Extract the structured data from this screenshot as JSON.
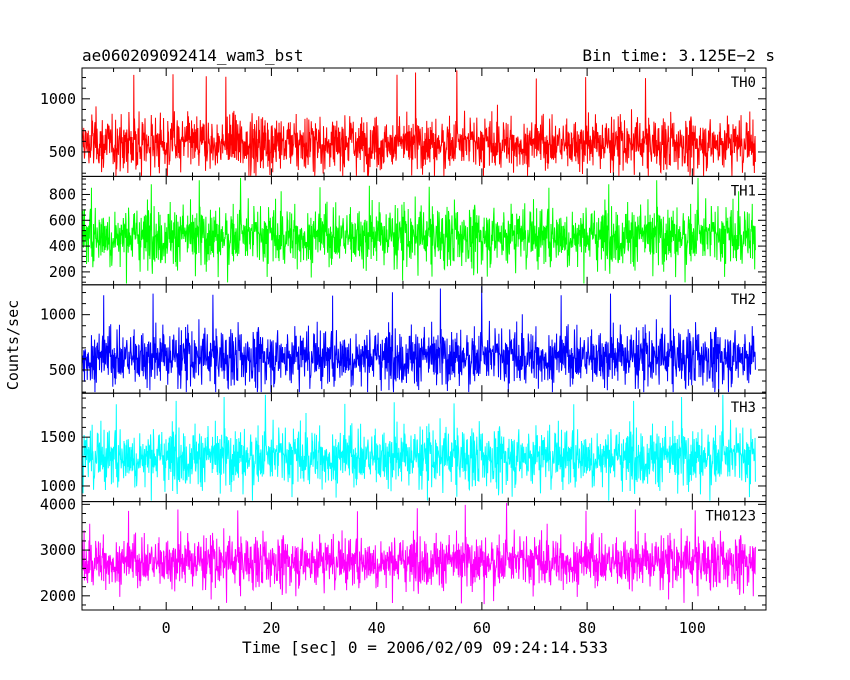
{
  "header": {
    "title": "ae060209092414_wam3_bst",
    "bin_time": "Bin time: 3.125E−2 s"
  },
  "axes": {
    "ylabel": "Counts/sec",
    "xlabel": "Time [sec] 0 = 2006/02/09 09:24:14.533",
    "xlim": [
      -16,
      114
    ],
    "xticks": [
      0,
      20,
      40,
      60,
      80,
      100
    ],
    "xtick_labels": [
      "0",
      "20",
      "40",
      "60",
      "80",
      "100"
    ]
  },
  "chart_data": {
    "type": "line",
    "x_range": [
      -16,
      112
    ],
    "bin_time_s": 0.03125,
    "xlabel": "Time [sec] 0 = 2006/02/09 09:24:14.533",
    "ylabel": "Counts/sec",
    "grid": false,
    "series": [
      {
        "name": "TH0",
        "color": "#ff0000",
        "ylim": [
          270,
          1290
        ],
        "yticks": [
          500,
          1000
        ],
        "ytick_labels": [
          "500",
          "1000"
        ],
        "mean": 580,
        "typical_low": 300,
        "typical_high": 1050,
        "peak": 1280,
        "trough": 220
      },
      {
        "name": "TH1",
        "color": "#00ff00",
        "ylim": [
          100,
          940
        ],
        "yticks": [
          200,
          400,
          600,
          800
        ],
        "ytick_labels": [
          "200",
          "400",
          "600",
          "800"
        ],
        "mean": 480,
        "typical_low": 170,
        "typical_high": 880,
        "peak": 940,
        "trough": 110
      },
      {
        "name": "TH2",
        "color": "#0000ff",
        "ylim": [
          290,
          1270
        ],
        "yticks": [
          500,
          1000
        ],
        "ytick_labels": [
          "500",
          "1000"
        ],
        "mean": 620,
        "typical_low": 330,
        "typical_high": 1120,
        "peak": 1270,
        "trough": 300
      },
      {
        "name": "TH3",
        "color": "#00ffff",
        "ylim": [
          840,
          1950
        ],
        "yticks": [
          1000,
          1500
        ],
        "ytick_labels": [
          "1000",
          "1500"
        ],
        "mean": 1300,
        "typical_low": 880,
        "typical_high": 1800,
        "peak": 1950,
        "trough": 850
      },
      {
        "name": "TH0123",
        "color": "#ff00ff",
        "ylim": [
          1690,
          4060
        ],
        "yticks": [
          2000,
          3000,
          4000
        ],
        "ytick_labels": [
          "2000",
          "3000",
          "4000"
        ],
        "mean": 2750,
        "typical_low": 1950,
        "typical_high": 3650,
        "peak": 4060,
        "trough": 1700
      }
    ]
  }
}
